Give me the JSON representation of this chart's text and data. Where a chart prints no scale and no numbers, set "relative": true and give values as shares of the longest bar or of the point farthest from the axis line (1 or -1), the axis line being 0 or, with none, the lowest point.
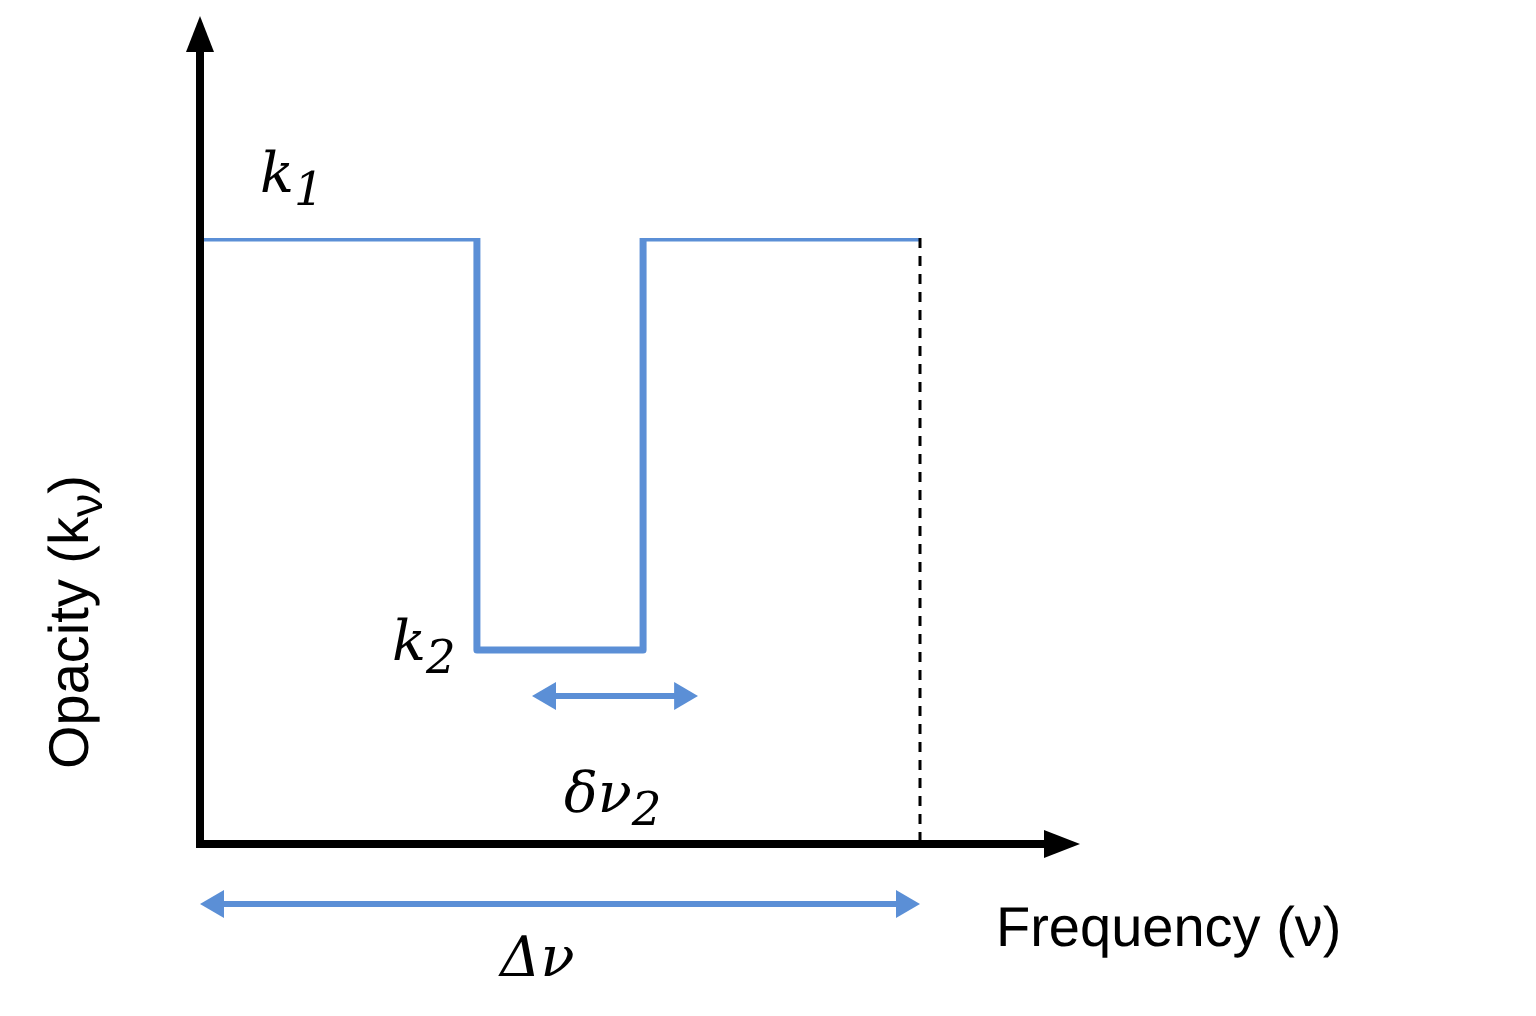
{
  "chart_data": {
    "type": "step",
    "relative": true,
    "xlabel": "Frequency (ν)",
    "ylabel": "Opacity (k$_{ν}$)",
    "categories": [
      null,
      null,
      null,
      null,
      null,
      null,
      null,
      null,
      null,
      null,
      null,
      null,
      null,
      null
    ],
    "values": [
      1,
      1,
      1,
      1,
      1,
      1,
      0.32,
      0.32,
      0.32,
      1,
      1,
      1,
      1,
      1
    ],
    "color": "#5b8fd6",
    "annotations": [
      "k$_{1}$",
      "k$_{2}$",
      "δν$_{2}$",
      "Δν"
    ]
  }
}
